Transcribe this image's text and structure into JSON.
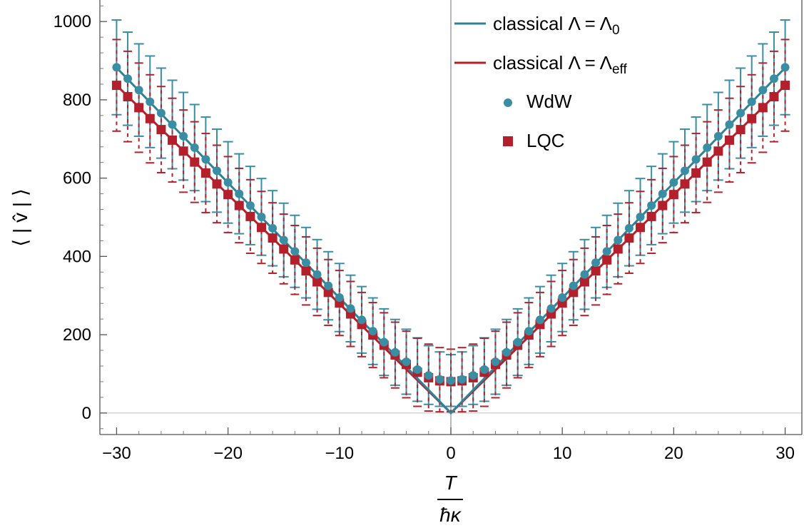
{
  "chart_data": {
    "type": "scatter",
    "xlabel": {
      "numerator": "T",
      "denominator": "ħκ"
    },
    "ylabel": "⟨ | v̂ | ⟩",
    "xlim": [
      -31.5,
      31.5
    ],
    "ylim": [
      -55,
      1055
    ],
    "x_ticks": [
      "−30",
      "−20",
      "−10",
      "0",
      "10",
      "20",
      "30"
    ],
    "x_tick_values": [
      -30,
      -20,
      -10,
      0,
      10,
      20,
      30
    ],
    "y_ticks": [
      "0",
      "200",
      "400",
      "600",
      "800",
      "1000"
    ],
    "y_tick_values": [
      0,
      200,
      400,
      600,
      800,
      1000
    ],
    "grid": false,
    "zero_lines": true,
    "legend_position": "top-right",
    "x": [
      -30,
      -29,
      -28,
      -27,
      -26,
      -25,
      -24,
      -23,
      -22,
      -21,
      -20,
      -19,
      -18,
      -17,
      -16,
      -15,
      -14,
      -13,
      -12,
      -11,
      -10,
      -9,
      -8,
      -7,
      -6,
      -5,
      -4,
      -3,
      -2,
      -1,
      0,
      1,
      2,
      3,
      4,
      5,
      6,
      7,
      8,
      9,
      10,
      11,
      12,
      13,
      14,
      15,
      16,
      17,
      18,
      19,
      20,
      21,
      22,
      23,
      24,
      25,
      26,
      27,
      28,
      29,
      30
    ],
    "series": [
      {
        "name": "classical Λ = Λ",
        "name_sub": "0",
        "kind": "line",
        "color": "#2f8196",
        "slope": 29.4
      },
      {
        "name": "classical Λ = Λ",
        "name_sub": "eff",
        "kind": "line",
        "color": "#b3202b",
        "slope": 27.9
      },
      {
        "name": "WdW",
        "kind": "points",
        "marker": "circle",
        "color": "#3a8ea3",
        "values": [
          883,
          854,
          825,
          795,
          766,
          737,
          707,
          678,
          648,
          619,
          589,
          560,
          530,
          501,
          472,
          442,
          413,
          384,
          354,
          325,
          295,
          267,
          238,
          209,
          181,
          155,
          131,
          111,
          96,
          86,
          83,
          86,
          96,
          111,
          131,
          155,
          181,
          209,
          238,
          267,
          295,
          325,
          354,
          384,
          413,
          442,
          472,
          501,
          530,
          560,
          589,
          619,
          648,
          678,
          707,
          737,
          766,
          795,
          825,
          854,
          883
        ],
        "err_upper": [
          1004,
          973,
          943,
          912,
          881,
          850,
          819,
          788,
          756,
          725,
          693,
          662,
          630,
          599,
          568,
          536,
          505,
          474,
          443,
          412,
          382,
          352,
          323,
          294,
          266,
          239,
          214,
          192,
          172,
          156,
          149,
          156,
          172,
          192,
          214,
          239,
          266,
          294,
          323,
          352,
          382,
          412,
          443,
          474,
          505,
          536,
          568,
          599,
          630,
          662,
          693,
          725,
          756,
          788,
          819,
          850,
          881,
          912,
          943,
          973,
          1004
        ],
        "err_lower": [
          762,
          735,
          707,
          678,
          651,
          624,
          595,
          568,
          540,
          513,
          485,
          458,
          430,
          403,
          376,
          348,
          321,
          294,
          265,
          238,
          208,
          182,
          153,
          124,
          96,
          71,
          48,
          30,
          22,
          17,
          17,
          17,
          22,
          30,
          48,
          71,
          96,
          124,
          153,
          182,
          208,
          238,
          265,
          294,
          321,
          348,
          376,
          403,
          430,
          458,
          485,
          513,
          540,
          568,
          595,
          624,
          651,
          678,
          707,
          735,
          762
        ]
      },
      {
        "name": "LQC",
        "kind": "points",
        "marker": "square",
        "color": "#b3202b",
        "values": [
          837,
          808,
          780,
          752,
          724,
          697,
          669,
          641,
          613,
          585,
          558,
          530,
          502,
          474,
          447,
          419,
          391,
          363,
          335,
          308,
          281,
          253,
          226,
          199,
          173,
          148,
          124,
          104,
          90,
          82,
          80,
          82,
          90,
          104,
          124,
          148,
          173,
          199,
          226,
          253,
          281,
          308,
          335,
          363,
          391,
          419,
          447,
          474,
          502,
          530,
          558,
          585,
          613,
          641,
          669,
          697,
          724,
          752,
          780,
          808,
          837
        ],
        "err_upper": [
          954,
          924,
          894,
          864,
          834,
          804,
          774,
          744,
          714,
          684,
          655,
          625,
          596,
          566,
          537,
          508,
          479,
          450,
          421,
          392,
          364,
          336,
          308,
          282,
          256,
          232,
          209,
          191,
          176,
          167,
          163,
          167,
          176,
          191,
          209,
          232,
          256,
          282,
          308,
          336,
          364,
          392,
          421,
          450,
          479,
          508,
          537,
          566,
          596,
          625,
          655,
          684,
          714,
          744,
          774,
          804,
          834,
          864,
          894,
          924,
          954
        ],
        "err_lower": [
          720,
          693,
          666,
          639,
          614,
          590,
          564,
          538,
          512,
          486,
          461,
          435,
          408,
          382,
          357,
          330,
          303,
          276,
          249,
          224,
          198,
          170,
          144,
          116,
          90,
          64,
          39,
          17,
          5,
          3,
          3,
          3,
          5,
          17,
          39,
          64,
          90,
          116,
          144,
          170,
          198,
          224,
          249,
          276,
          303,
          330,
          357,
          382,
          408,
          435,
          461,
          486,
          512,
          538,
          564,
          590,
          614,
          639,
          666,
          693,
          720
        ]
      }
    ]
  }
}
